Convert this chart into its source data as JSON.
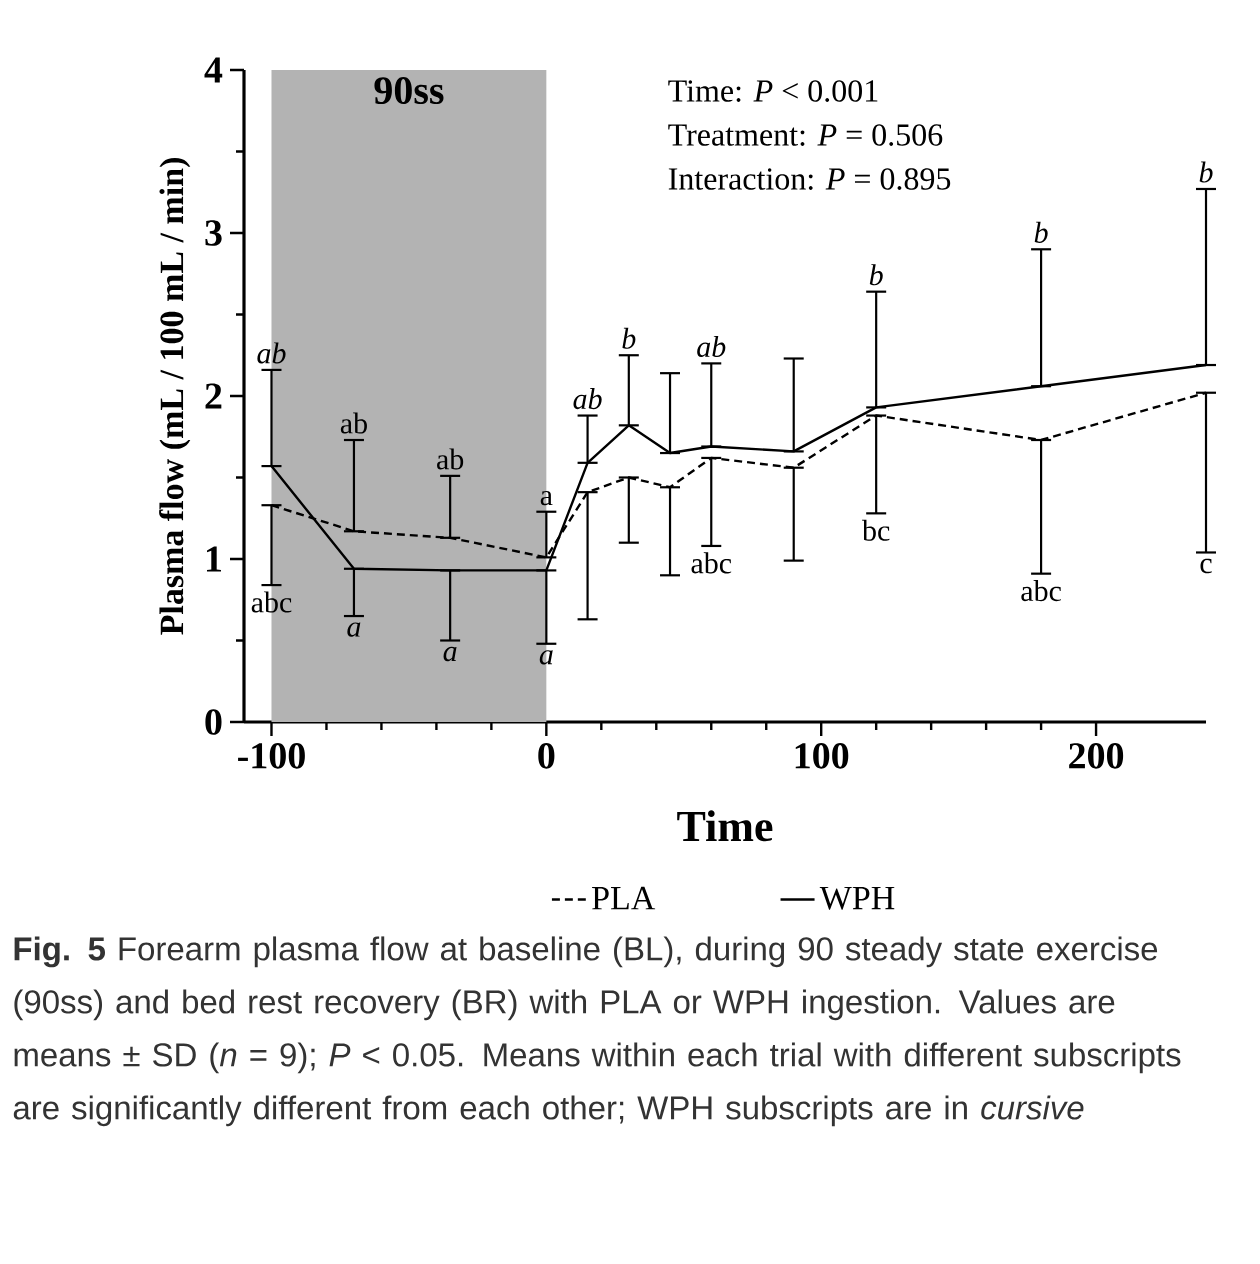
{
  "chart_data": {
    "type": "line",
    "xlabel": "Time",
    "ylabel": "Plasma flow (mL / 100 mL / min)",
    "x": [
      -100,
      -70,
      -35,
      0,
      15,
      30,
      45,
      60,
      90,
      120,
      180,
      240
    ],
    "series": [
      {
        "name": "PLA",
        "color": "#000000",
        "line_style": "dashed",
        "values": [
          1.33,
          1.17,
          1.13,
          1.01,
          1.41,
          1.5,
          1.44,
          1.62,
          1.56,
          1.88,
          1.73,
          2.02
        ],
        "errors": [
          [
            0.84,
            1.33
          ],
          [
            1.17,
            1.73
          ],
          [
            1.13,
            1.51
          ],
          [
            1.01,
            1.29
          ],
          [
            0.63,
            1.41
          ],
          [
            1.1,
            1.5
          ],
          [
            0.9,
            1.44
          ],
          [
            1.08,
            1.62
          ],
          [
            0.99,
            1.56
          ],
          [
            1.28,
            1.88
          ],
          [
            0.91,
            1.73
          ],
          [
            1.04,
            2.02
          ]
        ]
      },
      {
        "name": "WPH",
        "color": "#000000",
        "line_style": "solid",
        "values": [
          1.57,
          0.94,
          0.93,
          0.93,
          1.59,
          1.82,
          1.65,
          1.69,
          1.66,
          1.93,
          2.06,
          2.19
        ],
        "errors": [
          [
            1.57,
            2.16
          ],
          [
            0.65,
            0.94
          ],
          [
            0.5,
            0.93
          ],
          [
            0.48,
            0.93
          ],
          [
            1.59,
            1.88
          ],
          [
            1.82,
            2.25
          ],
          [
            1.65,
            2.14
          ],
          [
            1.69,
            2.2
          ],
          [
            1.66,
            2.23
          ],
          [
            1.93,
            2.64
          ],
          [
            2.06,
            2.9
          ],
          [
            2.19,
            3.27
          ]
        ]
      }
    ],
    "xlim": [
      -110,
      240
    ],
    "ylim": [
      0,
      4
    ],
    "xticks": [
      -100,
      0,
      100,
      200
    ],
    "yticks": [
      0,
      1,
      2,
      3,
      4
    ],
    "bands": [
      {
        "axis": "x",
        "from": -100,
        "to": 0,
        "label": "90ss",
        "color": "#b3b3b3"
      }
    ],
    "legend": "bottom",
    "grid": false,
    "marker": "none",
    "annotations": [
      "Time: *P* < 0.001",
      "Treatment: *P* = 0.506",
      "Interaction: *P* = 0.895",
      {
        "text": "*ab*",
        "x": -100,
        "y": 2.16
      },
      {
        "text": "*a*",
        "x": -70,
        "y": 0.65
      },
      {
        "text": "*a*",
        "x": -35,
        "y": 0.5
      },
      {
        "text": "*a*",
        "x": 0,
        "y": 0.48
      },
      {
        "text": "*ab*",
        "x": 15,
        "y": 1.88
      },
      {
        "text": "*b*",
        "x": 30,
        "y": 2.25
      },
      {
        "text": "*ab*",
        "x": 60,
        "y": 2.2
      },
      {
        "text": "*b*",
        "x": 120,
        "y": 2.64
      },
      {
        "text": "*b*",
        "x": 180,
        "y": 2.9
      },
      {
        "text": "*b*",
        "x": 240,
        "y": 3.27
      },
      {
        "text": "abc",
        "x": -100,
        "y": 0.84
      },
      {
        "text": "ab",
        "x": -70,
        "y": 1.73
      },
      {
        "text": "ab",
        "x": -35,
        "y": 1.51
      },
      {
        "text": "a",
        "x": 0,
        "y": 1.29
      },
      {
        "text": "abc",
        "x": 60,
        "y": 1.08
      },
      {
        "text": "bc",
        "x": 120,
        "y": 1.28
      },
      {
        "text": "abc",
        "x": 180,
        "y": 0.91
      },
      {
        "text": "c",
        "x": 240,
        "y": 1.04
      },
      "**Fig. 5** Forearm plasma flow at baseline (BL), during 90 steady state exercise (90ss) and bed rest recovery (BR) with PLA or WPH ingestion. Values are means ± SD (*n* = 9); *P* < 0.05. Means within each trial with different subscripts are significantly different from each other; WPH subscripts are in *cursive*"
    ]
  }
}
